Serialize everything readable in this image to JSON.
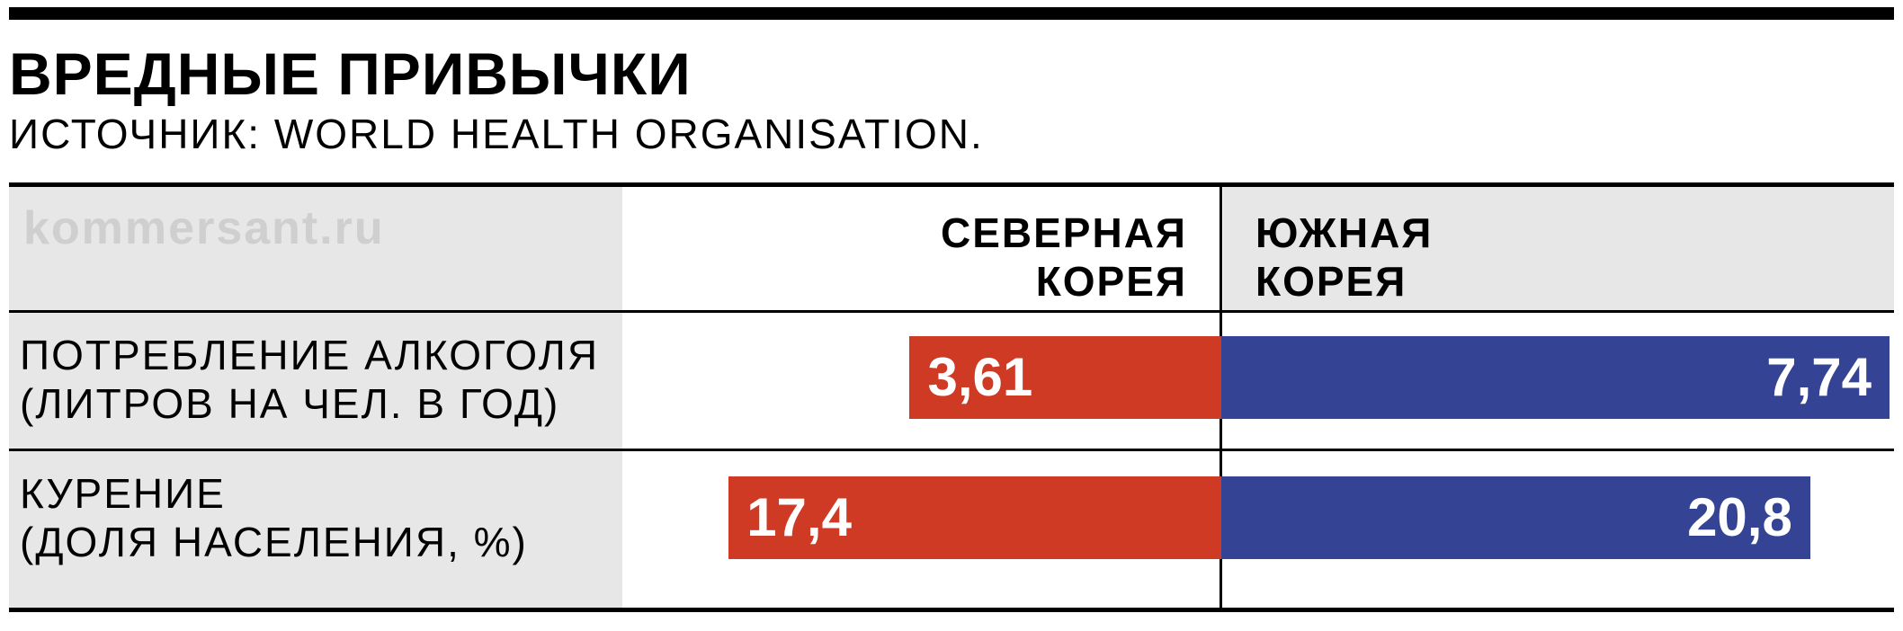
{
  "header": {
    "title": "ВРЕДНЫЕ ПРИВЫЧКИ",
    "source": "ИСТОЧНИК: WORLD HEALTH ORGANISATION."
  },
  "watermark": "kommersant.ru",
  "colors": {
    "north_korea": "#cf3a25",
    "south_korea": "#344393",
    "row_label_bg": "#e7e7e7"
  },
  "chart_data": {
    "type": "bar",
    "title": "ВРЕДНЫЕ ПРИВЫЧКИ",
    "source": "ИСТОЧНИК: WORLD HEALTH ORGANISATION.",
    "orientation": "horizontal-diverging",
    "series": [
      {
        "name_lines": [
          "СЕВЕРНАЯ",
          "КОРЕЯ"
        ],
        "values": [
          3.61,
          17.4
        ],
        "labels": [
          "3,61",
          "17,4"
        ]
      },
      {
        "name_lines": [
          "ЮЖНАЯ",
          "КОРЕЯ"
        ],
        "values": [
          7.74,
          20.8
        ],
        "labels": [
          "7,74",
          "20,8"
        ]
      }
    ],
    "categories": [
      {
        "lines": [
          "ПОТРЕБЛЕНИЕ АЛКОГОЛЯ",
          "(ЛИТРОВ НА ЧЕЛ. В ГОД)"
        ]
      },
      {
        "lines": [
          "КУРЕНИЕ",
          "(ДОЛЯ НАСЕЛЕНИЯ, %)"
        ]
      }
    ],
    "scale_max": [
      7.74,
      23.6
    ]
  }
}
